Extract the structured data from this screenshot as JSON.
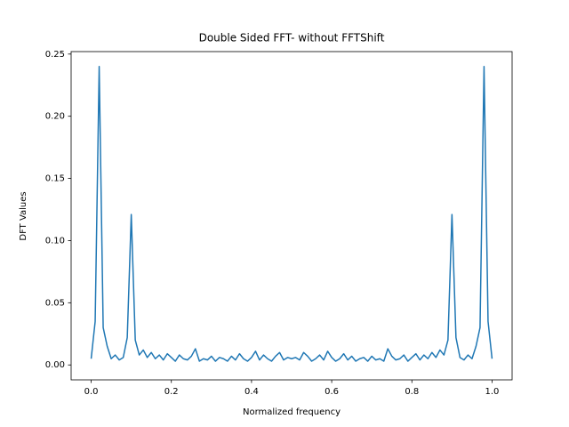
{
  "chart_data": {
    "type": "line",
    "title": "Double Sided FFT- without FFTShift",
    "x_label": "Normalized frequency",
    "y_label": "DFT Values",
    "x": [
      0,
      0.01,
      0.02,
      0.03,
      0.04,
      0.05,
      0.06,
      0.07,
      0.08,
      0.09,
      0.1,
      0.11,
      0.12,
      0.13,
      0.14,
      0.15,
      0.16,
      0.17,
      0.18,
      0.19,
      0.2,
      0.21,
      0.22,
      0.23,
      0.24,
      0.25,
      0.26,
      0.27,
      0.28,
      0.29,
      0.3,
      0.31,
      0.32,
      0.33,
      0.34,
      0.35,
      0.36,
      0.37,
      0.38,
      0.39,
      0.4,
      0.41,
      0.42,
      0.43,
      0.44,
      0.45,
      0.46,
      0.47,
      0.48,
      0.49,
      0.5,
      0.51,
      0.52,
      0.53,
      0.54,
      0.55,
      0.56,
      0.57,
      0.58,
      0.59,
      0.6,
      0.61,
      0.62,
      0.63,
      0.64,
      0.65,
      0.66,
      0.67,
      0.68,
      0.69,
      0.7,
      0.71,
      0.72,
      0.73,
      0.74,
      0.75,
      0.76,
      0.77,
      0.78,
      0.79,
      0.8,
      0.81,
      0.82,
      0.83,
      0.84,
      0.85,
      0.86,
      0.87,
      0.88,
      0.89,
      0.9,
      0.91,
      0.92,
      0.93,
      0.94,
      0.95,
      0.96,
      0.97,
      0.98,
      0.99,
      1
    ],
    "series": [
      {
        "color": "#1f77b4",
        "values": [
          0.005,
          0.035,
          0.24,
          0.03,
          0.015,
          0.005,
          0.008,
          0.004,
          0.006,
          0.022,
          0.121,
          0.02,
          0.008,
          0.012,
          0.006,
          0.01,
          0.005,
          0.008,
          0.004,
          0.009,
          0.006,
          0.003,
          0.008,
          0.005,
          0.004,
          0.007,
          0.013,
          0.003,
          0.005,
          0.004,
          0.007,
          0.003,
          0.006,
          0.005,
          0.003,
          0.007,
          0.004,
          0.009,
          0.005,
          0.003,
          0.006,
          0.011,
          0.004,
          0.008,
          0.005,
          0.003,
          0.007,
          0.01,
          0.004,
          0.006,
          0.005,
          0.006,
          0.004,
          0.01,
          0.007,
          0.003,
          0.005,
          0.008,
          0.004,
          0.011,
          0.006,
          0.003,
          0.005,
          0.009,
          0.004,
          0.007,
          0.003,
          0.005,
          0.006,
          0.003,
          0.007,
          0.004,
          0.005,
          0.003,
          0.013,
          0.007,
          0.004,
          0.005,
          0.008,
          0.003,
          0.006,
          0.009,
          0.004,
          0.008,
          0.005,
          0.01,
          0.006,
          0.012,
          0.008,
          0.02,
          0.121,
          0.022,
          0.006,
          0.004,
          0.008,
          0.005,
          0.015,
          0.03,
          0.24,
          0.035,
          0.005
        ]
      }
    ],
    "xlim": [
      -0.05,
      1.05
    ],
    "ylim": [
      -0.012,
      0.252
    ],
    "xticks": [
      {
        "value": 0,
        "label": "0.0"
      },
      0.2,
      0.4,
      0.6,
      0.8,
      {
        "value": 1,
        "label": "1.0"
      }
    ],
    "yticks": [
      {
        "value": 0,
        "label": "0.00"
      },
      {
        "value": 0.05,
        "label": "0.05"
      },
      {
        "value": 0.1,
        "label": "0.10"
      },
      {
        "value": 0.15,
        "label": "0.15"
      },
      {
        "value": 0.2,
        "label": "0.20"
      },
      {
        "value": 0.25,
        "label": "0.25"
      }
    ],
    "grid": false
  }
}
